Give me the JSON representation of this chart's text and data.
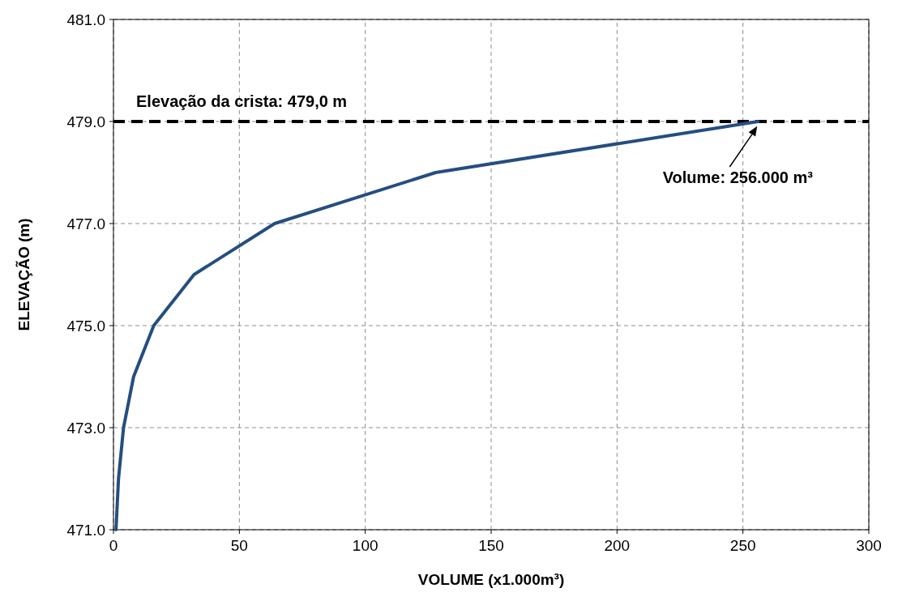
{
  "chart_data": {
    "type": "line",
    "xlabel": "VOLUME (x1.000m³)",
    "ylabel": "ELEVAÇÃO (m)",
    "x": [
      1,
      2,
      4,
      8,
      16,
      32,
      64,
      128,
      256
    ],
    "series": [
      {
        "color": "#254e80",
        "values": [
          471,
          472,
          473,
          474,
          475,
          476,
          477,
          478,
          479
        ]
      }
    ],
    "xlim": [
      0,
      300
    ],
    "xticks": [
      0,
      50,
      100,
      150,
      200,
      250,
      300
    ],
    "ylim": [
      471,
      481
    ],
    "yticks": [
      {
        "value": 471,
        "label": "471.0"
      },
      {
        "value": 473,
        "label": "473.0"
      },
      {
        "value": 475,
        "label": "475.0"
      },
      {
        "value": 477,
        "label": "477.0"
      },
      {
        "value": 479,
        "label": "479.0"
      },
      {
        "value": 481,
        "label": "481.0"
      }
    ],
    "grid": true,
    "marker": "none",
    "line_style": "solid",
    "ref_lines": [
      {
        "axis": "y",
        "value": 479,
        "label": "Elevação da crista: 479,0 m",
        "color": "#000000",
        "line_style": "dashed"
      }
    ],
    "annotations": [
      {
        "text": "Volume: 256.000 m³",
        "x": 256,
        "y": 479
      }
    ]
  }
}
